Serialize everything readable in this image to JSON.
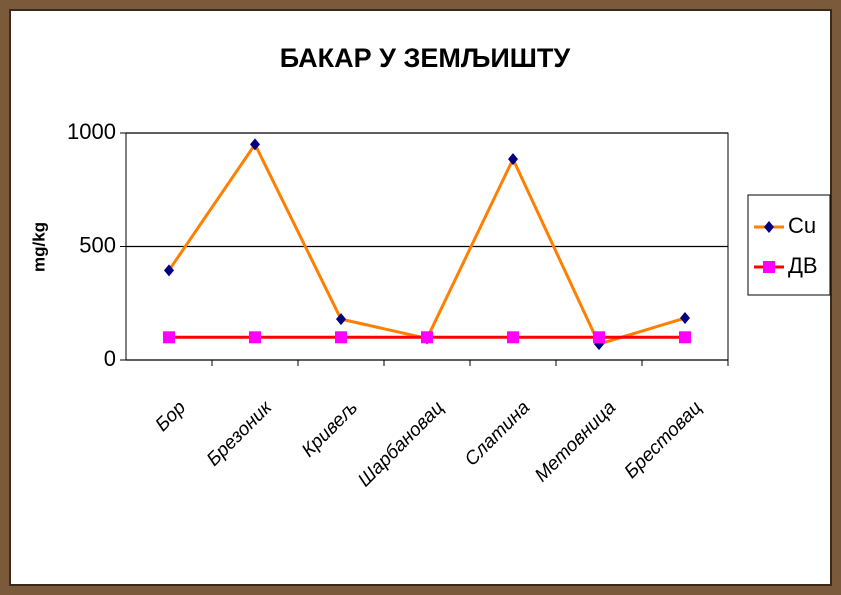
{
  "chart_data": {
    "type": "line",
    "title": "БАКАР У ЗЕМЉИШТУ",
    "y_label": "mg/kg",
    "categories": [
      "Бор",
      "Брезоник",
      "Кривељ",
      "Шарбановац",
      "Слатина",
      "Метовница",
      "Брестовац"
    ],
    "series": [
      {
        "name": "Cu",
        "color": "#ff8000",
        "marker_color": "#000080",
        "marker": "diamond",
        "values": [
          395,
          950,
          180,
          95,
          885,
          70,
          185
        ]
      },
      {
        "name": "ДВ",
        "color": "#ff0000",
        "marker_color": "#ff00ff",
        "marker": "square",
        "values": [
          100,
          100,
          100,
          100,
          100,
          100,
          100
        ]
      }
    ],
    "ylim": [
      0,
      1000
    ],
    "yticks": [
      0,
      500,
      1000
    ],
    "grid": true,
    "legend": "right"
  }
}
